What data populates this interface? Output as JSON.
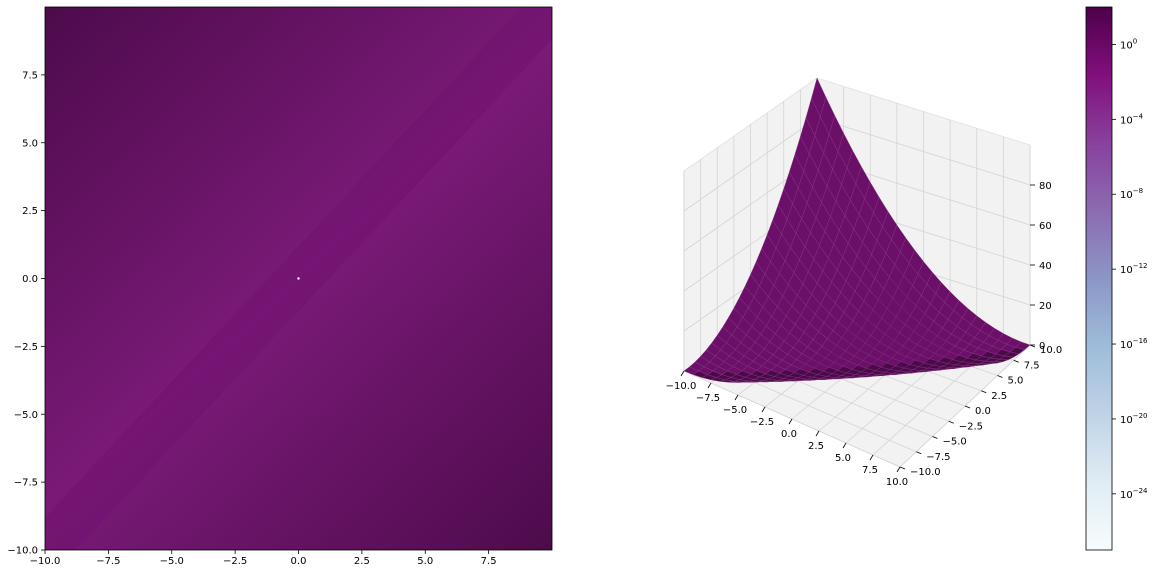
{
  "chart_data": [
    {
      "type": "heatmap",
      "title": "",
      "xlabel": "",
      "ylabel": "",
      "xlim": [
        -10,
        10
      ],
      "ylim": [
        -10,
        10
      ],
      "x_ticks": [
        -10.0,
        -7.5,
        -5.0,
        -2.5,
        0.0,
        2.5,
        5.0,
        7.5
      ],
      "x_tick_labels": [
        "−10.0",
        "−7.5",
        "−5.0",
        "−2.5",
        "0.0",
        "2.5",
        "5.0",
        "7.5"
      ],
      "y_ticks": [
        -10.0,
        -7.5,
        -5.0,
        -2.5,
        0.0,
        2.5,
        5.0,
        7.5
      ],
      "y_tick_labels": [
        "−10.0",
        "−7.5",
        "−5.0",
        "−2.5",
        "0.0",
        "2.5",
        "5.0",
        "7.5"
      ],
      "colormap": "BuPu",
      "color_scale": "log",
      "description_of_field": "z = (x - y)^2 / 4, minimum along the diagonal x = y",
      "colors": {
        "dark": "#4d0b4b",
        "mid": "#6e0e6c",
        "light": "#7a1a78",
        "center": "#ffffff"
      }
    },
    {
      "type": "surface",
      "title": "",
      "xlabel": "",
      "ylabel": "",
      "zlabel": "",
      "xlim": [
        -10,
        10
      ],
      "ylim": [
        -10,
        10
      ],
      "zlim": [
        0,
        100
      ],
      "x_tick_labels": [
        "−10.0",
        "−7.5",
        "−5.0",
        "−2.5",
        "0.0",
        "2.5",
        "5.0",
        "7.5",
        "10.0"
      ],
      "y_tick_labels": [
        "−10.0",
        "−7.5",
        "−5.0",
        "−2.5",
        "0.0",
        "2.5",
        "5.0",
        "7.5",
        "10.0"
      ],
      "z_ticks": [
        0,
        20,
        40,
        60,
        80
      ],
      "z_tick_labels": [
        "0",
        "20",
        "40",
        "60",
        "80"
      ],
      "function": "z = (x - y)^2 / 4",
      "colors": {
        "surface": "#6b0f69",
        "surface_dark": "#4a0a48",
        "pane": "#f2f2f2",
        "pane_edge": "#e0e0e0",
        "grid": "#d4d4d4"
      }
    },
    {
      "type": "colorbar",
      "scale": "log",
      "range_exp": [
        -27,
        2
      ],
      "ticks_exp": [
        0,
        -4,
        -8,
        -12,
        -16,
        -20,
        -24
      ],
      "tick_labels": [
        "10^0",
        "10^−4",
        "10^−8",
        "10^−12",
        "10^−16",
        "10^−20",
        "10^−24"
      ],
      "colormap": "BuPu",
      "gradient": [
        "#f7fcfd",
        "#e0ecf4",
        "#bfd3e6",
        "#9ebcda",
        "#8c96c6",
        "#8c6bb1",
        "#88419d",
        "#810f7c",
        "#4d004b"
      ]
    }
  ]
}
